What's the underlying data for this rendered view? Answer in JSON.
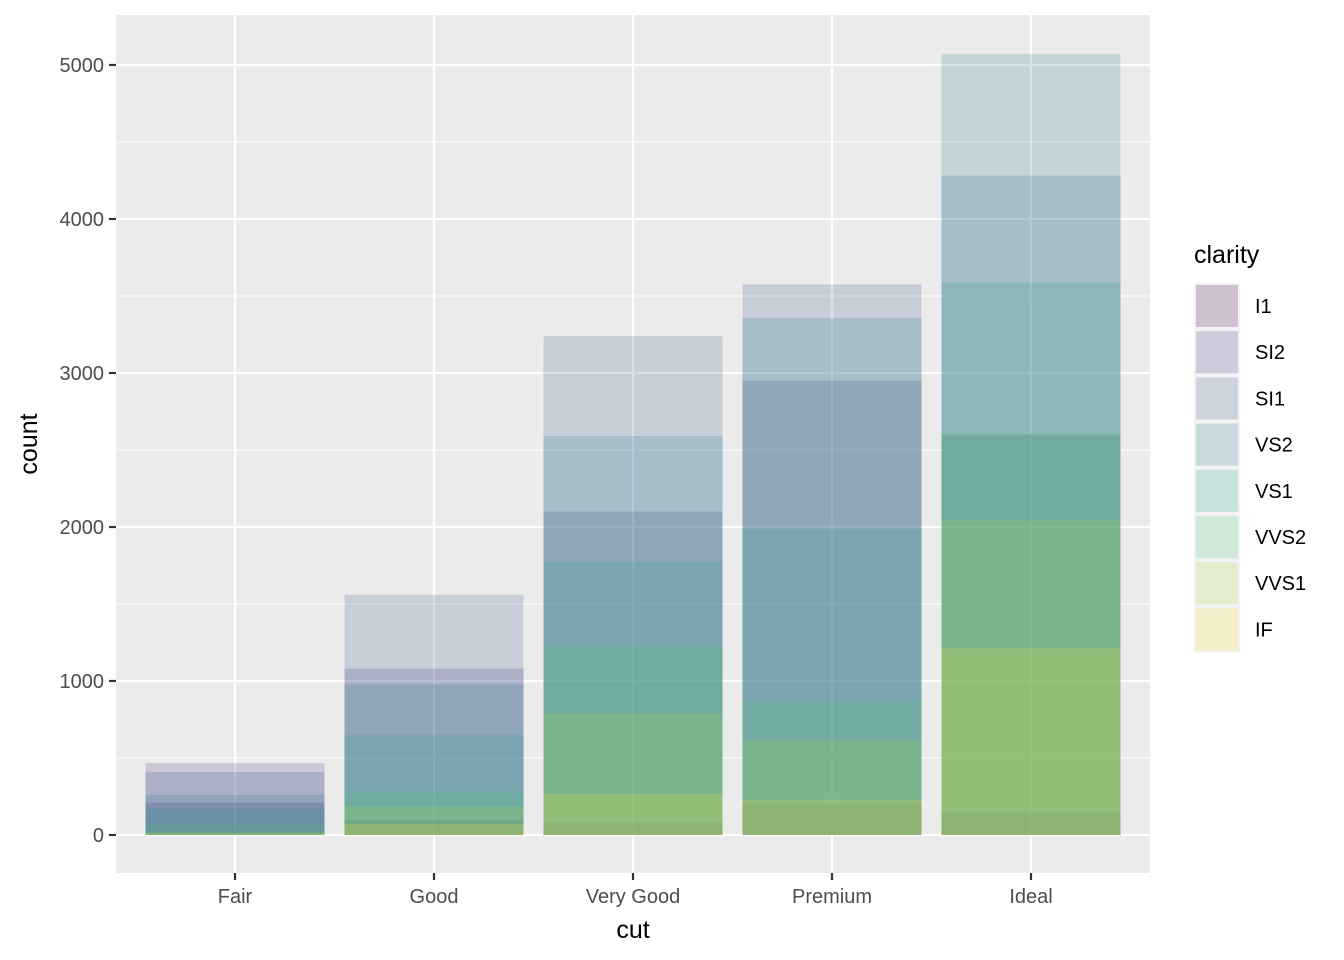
{
  "chart_data": {
    "type": "bar",
    "position": "identity",
    "alpha": 0.2,
    "title": "",
    "xlabel": "cut",
    "ylabel": "count",
    "categories": [
      "Fair",
      "Good",
      "Very Good",
      "Premium",
      "Ideal"
    ],
    "ylim": [
      0,
      5071
    ],
    "yticks": [
      0,
      1000,
      2000,
      3000,
      4000,
      5000
    ],
    "grid": true,
    "legend": {
      "title": "clarity",
      "position": "right"
    },
    "series": [
      {
        "name": "I1",
        "color": "#440154",
        "values": [
          210,
          96,
          84,
          205,
          146
        ]
      },
      {
        "name": "SI2",
        "color": "#46337E",
        "values": [
          466,
          1081,
          2100,
          2949,
          2598
        ]
      },
      {
        "name": "SI1",
        "color": "#365C8D",
        "values": [
          408,
          1560,
          3240,
          3575,
          4282
        ]
      },
      {
        "name": "VS2",
        "color": "#277F8E",
        "values": [
          261,
          978,
          2591,
          3357,
          5071
        ]
      },
      {
        "name": "VS1",
        "color": "#1FA187",
        "values": [
          170,
          648,
          1775,
          1989,
          3589
        ]
      },
      {
        "name": "VVS2",
        "color": "#4AC16D",
        "values": [
          69,
          286,
          1235,
          870,
          2606
        ]
      },
      {
        "name": "VVS1",
        "color": "#9FDA3A",
        "values": [
          17,
          186,
          789,
          616,
          2047
        ]
      },
      {
        "name": "IF",
        "color": "#FDE725",
        "values": [
          9,
          71,
          268,
          230,
          1212
        ]
      }
    ]
  },
  "axes": {
    "x_title": "cut",
    "y_title": "count",
    "y_tick_labels": [
      "0",
      "1000",
      "2000",
      "3000",
      "4000",
      "5000"
    ],
    "x_tick_labels": [
      "Fair",
      "Good",
      "Very Good",
      "Premium",
      "Ideal"
    ]
  },
  "legend": {
    "title": "clarity",
    "items": [
      "I1",
      "SI2",
      "SI1",
      "VS2",
      "VS1",
      "VVS2",
      "VVS1",
      "IF"
    ]
  },
  "colors": {
    "panel_background": "#EBEBEB",
    "grid_major": "#FFFFFF",
    "tick_text": "#4D4D4D"
  }
}
